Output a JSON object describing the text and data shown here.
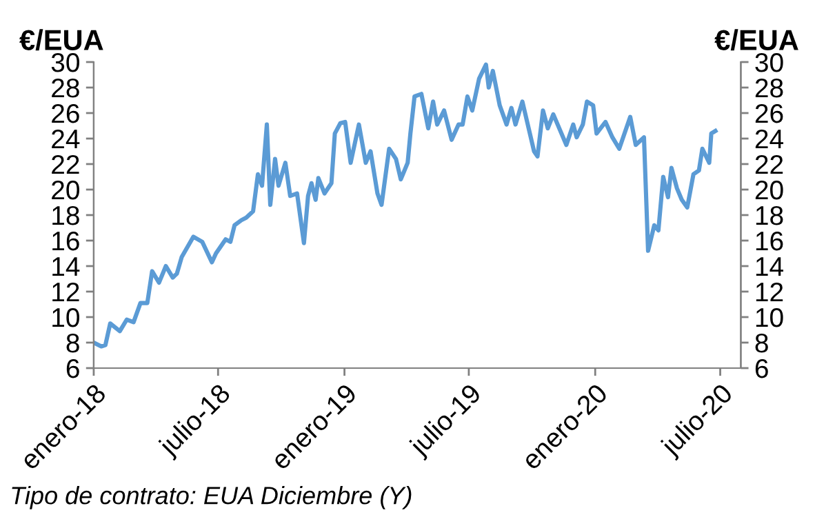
{
  "chart_data": {
    "type": "line",
    "ylabel": "€/EUA",
    "y2label": "€/EUA",
    "annotations": [
      "Tipo de contrato: EUA Diciembre (Y)"
    ],
    "x": [
      "2018-01-01",
      "2018-01-12",
      "2018-01-18",
      "2018-01-25",
      "2018-02-08",
      "2018-02-18",
      "2018-02-28",
      "2018-03-10",
      "2018-03-20",
      "2018-03-27",
      "2018-04-06",
      "2018-04-16",
      "2018-04-26",
      "2018-05-02",
      "2018-05-09",
      "2018-05-26",
      "2018-06-08",
      "2018-06-22",
      "2018-06-28",
      "2018-07-12",
      "2018-07-19",
      "2018-07-25",
      "2018-08-04",
      "2018-08-11",
      "2018-08-21",
      "2018-08-28",
      "2018-09-03",
      "2018-09-10",
      "2018-09-15",
      "2018-09-22",
      "2018-09-27",
      "2018-10-07",
      "2018-10-14",
      "2018-10-24",
      "2018-11-03",
      "2018-11-09",
      "2018-11-14",
      "2018-11-20",
      "2018-11-24",
      "2018-12-03",
      "2018-12-13",
      "2018-12-18",
      "2018-12-26",
      "2019-01-02",
      "2019-01-10",
      "2019-01-22",
      "2019-02-01",
      "2019-02-08",
      "2019-02-18",
      "2019-02-24",
      "2019-03-07",
      "2019-03-17",
      "2019-03-24",
      "2019-04-03",
      "2019-04-07",
      "2019-04-13",
      "2019-04-23",
      "2019-05-03",
      "2019-05-10",
      "2019-05-16",
      "2019-05-26",
      "2019-06-06",
      "2019-06-16",
      "2019-06-22",
      "2019-06-29",
      "2019-07-06",
      "2019-07-16",
      "2019-07-26",
      "2019-07-30",
      "2019-08-05",
      "2019-08-15",
      "2019-08-25",
      "2019-09-01",
      "2019-09-07",
      "2019-09-17",
      "2019-10-04",
      "2019-10-09",
      "2019-10-17",
      "2019-10-24",
      "2019-11-01",
      "2019-11-20",
      "2019-11-30",
      "2019-12-05",
      "2019-12-14",
      "2019-12-20",
      "2019-12-29",
      "2020-01-03",
      "2020-01-16",
      "2020-01-26",
      "2020-02-05",
      "2020-02-21",
      "2020-02-29",
      "2020-03-12",
      "2020-03-18",
      "2020-03-27",
      "2020-04-02",
      "2020-04-09",
      "2020-04-16",
      "2020-04-21",
      "2020-04-29",
      "2020-05-06",
      "2020-05-14",
      "2020-05-23",
      "2020-05-31",
      "2020-06-05",
      "2020-06-15",
      "2020-06-18",
      "2020-06-24"
    ],
    "series": [
      {
        "color": "#5b9bd5",
        "values": [
          8.0,
          7.7,
          7.8,
          9.5,
          8.9,
          9.8,
          9.6,
          11.1,
          11.1,
          13.6,
          12.7,
          14.0,
          13.1,
          13.4,
          14.7,
          16.3,
          15.9,
          14.3,
          15.0,
          16.1,
          15.9,
          17.2,
          17.6,
          17.8,
          18.3,
          21.2,
          20.3,
          25.1,
          18.8,
          22.4,
          20.3,
          22.1,
          19.5,
          19.7,
          15.8,
          19.5,
          20.5,
          19.2,
          20.9,
          19.7,
          20.5,
          24.4,
          25.2,
          25.3,
          22.1,
          25.1,
          22.1,
          23.0,
          19.7,
          18.8,
          23.2,
          22.4,
          20.8,
          22.1,
          24.4,
          27.3,
          27.5,
          24.8,
          26.9,
          25.1,
          26.2,
          23.9,
          25.1,
          25.1,
          27.3,
          26.2,
          28.7,
          29.8,
          28.0,
          29.3,
          26.6,
          25.1,
          26.4,
          25.1,
          26.9,
          23.0,
          22.6,
          26.2,
          24.8,
          25.9,
          23.5,
          25.1,
          24.1,
          25.1,
          26.9,
          26.6,
          24.4,
          25.3,
          24.1,
          23.2,
          25.7,
          23.5,
          24.1,
          15.2,
          17.2,
          16.8,
          21.0,
          19.4,
          21.7,
          20.1,
          19.2,
          18.6,
          21.2,
          21.5,
          23.2,
          22.1,
          24.4,
          24.6
        ]
      }
    ],
    "xlim": [
      "2018-01-01",
      "2020-07-31"
    ],
    "xticks": [
      {
        "value": "2018-01-01",
        "label": "enero-18"
      },
      {
        "value": "2018-07-01",
        "label": "julio-18"
      },
      {
        "value": "2019-01-01",
        "label": "enero-19"
      },
      {
        "value": "2019-07-01",
        "label": "julio-19"
      },
      {
        "value": "2020-01-01",
        "label": "enero-20"
      },
      {
        "value": "2020-07-01",
        "label": "julio-20"
      }
    ],
    "ylim": [
      6,
      30
    ],
    "yticks": [
      6,
      8,
      10,
      12,
      14,
      16,
      18,
      20,
      22,
      24,
      26,
      28,
      30
    ],
    "y2lim": [
      6,
      30
    ],
    "y2ticks": [
      6,
      8,
      10,
      12,
      14,
      16,
      18,
      20,
      22,
      24,
      26,
      28,
      30
    ],
    "grid": false,
    "legend": false,
    "marker": "none",
    "line_style": "solid"
  }
}
